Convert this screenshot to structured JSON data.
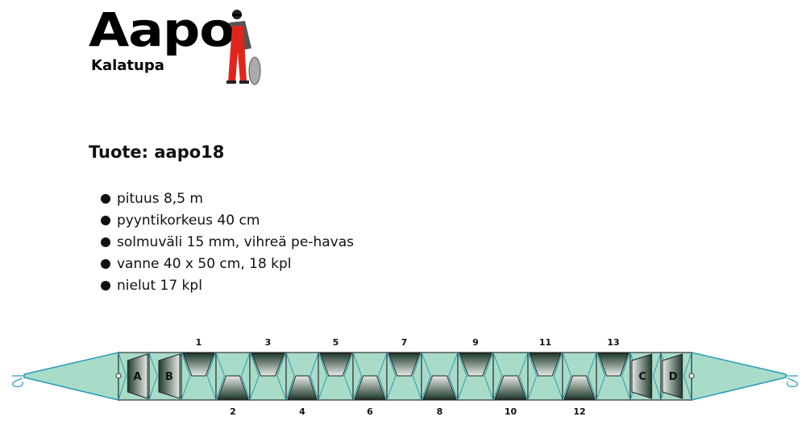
{
  "logo": {
    "name": "Aapo",
    "subtitle": "Kalatupa"
  },
  "product": {
    "title": "Tuote: aapo18"
  },
  "specs": [
    "pituus 8,5 m",
    "pyyntikorkeus 40 cm",
    "solmuväli 15 mm, vihreä pe-havas",
    "vanne 40 x 50 cm, 18 kpl",
    "nielut 17 kpl"
  ],
  "diagram": {
    "colors": {
      "net": "#a8dcc8",
      "line": "#2a9bb8",
      "funnel_dark": "#1f3a2c",
      "funnel_light": "#e8ece8"
    },
    "sections": [
      "A",
      "B",
      "1",
      "2",
      "3",
      "4",
      "5",
      "6",
      "7",
      "8",
      "9",
      "10",
      "11",
      "12",
      "13",
      "C",
      "D"
    ]
  }
}
